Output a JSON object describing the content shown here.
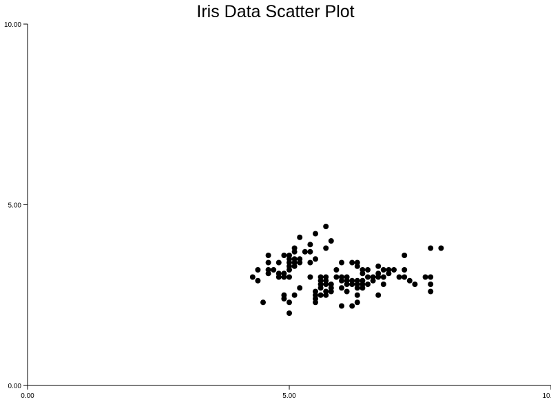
{
  "chart_data": {
    "type": "scatter",
    "title": "Iris Data Scatter Plot",
    "xlabel": "",
    "ylabel": "",
    "xlim": [
      0,
      10
    ],
    "ylim": [
      0,
      10
    ],
    "grid": false,
    "x_ticks": [
      "0.00",
      "5.00",
      "10.00"
    ],
    "y_ticks": [
      "0.00",
      "5.00",
      "10.00"
    ],
    "x_tick_values": [
      0,
      5,
      10
    ],
    "y_tick_values": [
      0,
      5,
      10
    ],
    "marker_color": "#000000",
    "axis_color": "#000000",
    "points": [
      [
        4.3,
        3.0
      ],
      [
        4.4,
        2.9
      ],
      [
        4.4,
        3.2
      ],
      [
        4.5,
        2.3
      ],
      [
        4.6,
        3.1
      ],
      [
        4.6,
        3.4
      ],
      [
        4.6,
        3.6
      ],
      [
        4.6,
        3.2
      ],
      [
        4.7,
        3.2
      ],
      [
        4.8,
        3.4
      ],
      [
        4.8,
        3.0
      ],
      [
        4.8,
        3.1
      ],
      [
        4.9,
        3.0
      ],
      [
        4.9,
        3.1
      ],
      [
        4.9,
        3.6
      ],
      [
        4.9,
        2.4
      ],
      [
        4.9,
        2.5
      ],
      [
        5.0,
        3.6
      ],
      [
        5.0,
        3.4
      ],
      [
        5.0,
        3.0
      ],
      [
        5.0,
        3.3
      ],
      [
        5.0,
        3.2
      ],
      [
        5.0,
        3.5
      ],
      [
        5.0,
        2.0
      ],
      [
        5.0,
        2.3
      ],
      [
        5.1,
        3.5
      ],
      [
        5.1,
        3.7
      ],
      [
        5.1,
        3.3
      ],
      [
        5.1,
        3.8
      ],
      [
        5.1,
        3.4
      ],
      [
        5.1,
        2.5
      ],
      [
        5.2,
        3.5
      ],
      [
        5.2,
        4.1
      ],
      [
        5.2,
        3.4
      ],
      [
        5.2,
        2.7
      ],
      [
        5.3,
        3.7
      ],
      [
        5.4,
        3.9
      ],
      [
        5.4,
        3.7
      ],
      [
        5.4,
        3.4
      ],
      [
        5.4,
        3.0
      ],
      [
        5.5,
        4.2
      ],
      [
        5.5,
        3.5
      ],
      [
        5.5,
        2.3
      ],
      [
        5.5,
        2.4
      ],
      [
        5.5,
        2.5
      ],
      [
        5.5,
        2.6
      ],
      [
        5.6,
        2.9
      ],
      [
        5.6,
        3.0
      ],
      [
        5.6,
        2.5
      ],
      [
        5.6,
        2.7
      ],
      [
        5.6,
        2.8
      ],
      [
        5.7,
        4.4
      ],
      [
        5.7,
        3.8
      ],
      [
        5.7,
        2.8
      ],
      [
        5.7,
        2.6
      ],
      [
        5.7,
        3.0
      ],
      [
        5.7,
        2.9
      ],
      [
        5.7,
        2.5
      ],
      [
        5.8,
        4.0
      ],
      [
        5.8,
        2.7
      ],
      [
        5.8,
        2.6
      ],
      [
        5.8,
        2.8
      ],
      [
        5.9,
        3.0
      ],
      [
        5.9,
        3.2
      ],
      [
        6.0,
        2.2
      ],
      [
        6.0,
        2.9
      ],
      [
        6.0,
        2.7
      ],
      [
        6.0,
        3.4
      ],
      [
        6.0,
        3.0
      ],
      [
        6.1,
        2.8
      ],
      [
        6.1,
        2.9
      ],
      [
        6.1,
        3.0
      ],
      [
        6.1,
        2.6
      ],
      [
        6.2,
        2.2
      ],
      [
        6.2,
        2.9
      ],
      [
        6.2,
        3.4
      ],
      [
        6.2,
        2.8
      ],
      [
        6.3,
        3.3
      ],
      [
        6.3,
        2.3
      ],
      [
        6.3,
        2.5
      ],
      [
        6.3,
        2.9
      ],
      [
        6.3,
        2.7
      ],
      [
        6.3,
        2.8
      ],
      [
        6.3,
        3.4
      ],
      [
        6.4,
        3.2
      ],
      [
        6.4,
        2.9
      ],
      [
        6.4,
        2.7
      ],
      [
        6.4,
        2.8
      ],
      [
        6.4,
        3.1
      ],
      [
        6.5,
        2.8
      ],
      [
        6.5,
        3.0
      ],
      [
        6.5,
        3.2
      ],
      [
        6.6,
        2.9
      ],
      [
        6.6,
        3.0
      ],
      [
        6.7,
        3.1
      ],
      [
        6.7,
        3.0
      ],
      [
        6.7,
        2.5
      ],
      [
        6.7,
        3.3
      ],
      [
        6.8,
        2.8
      ],
      [
        6.8,
        3.0
      ],
      [
        6.8,
        3.2
      ],
      [
        6.9,
        3.1
      ],
      [
        6.9,
        3.2
      ],
      [
        7.0,
        3.2
      ],
      [
        7.1,
        3.0
      ],
      [
        7.2,
        3.6
      ],
      [
        7.2,
        3.2
      ],
      [
        7.2,
        3.0
      ],
      [
        7.3,
        2.9
      ],
      [
        7.4,
        2.8
      ],
      [
        7.6,
        3.0
      ],
      [
        7.7,
        3.8
      ],
      [
        7.7,
        2.6
      ],
      [
        7.7,
        2.8
      ],
      [
        7.7,
        3.0
      ],
      [
        7.9,
        3.8
      ]
    ]
  }
}
